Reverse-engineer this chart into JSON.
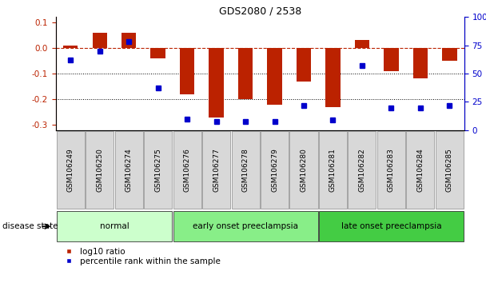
{
  "title": "GDS2080 / 2538",
  "samples": [
    "GSM106249",
    "GSM106250",
    "GSM106274",
    "GSM106275",
    "GSM106276",
    "GSM106277",
    "GSM106278",
    "GSM106279",
    "GSM106280",
    "GSM106281",
    "GSM106282",
    "GSM106283",
    "GSM106284",
    "GSM106285"
  ],
  "log10_ratio": [
    0.01,
    0.06,
    0.06,
    -0.04,
    -0.18,
    -0.27,
    -0.2,
    -0.22,
    -0.13,
    -0.23,
    0.03,
    -0.09,
    -0.12,
    -0.05
  ],
  "percentile_rank": [
    62,
    70,
    78,
    37,
    10,
    8,
    8,
    8,
    22,
    9,
    57,
    20,
    20,
    22
  ],
  "bar_color": "#bb2200",
  "dot_color": "#0000cc",
  "group_labels": [
    "normal",
    "early onset preeclampsia",
    "late onset preeclampsia"
  ],
  "group_starts": [
    0,
    4,
    9
  ],
  "group_ends": [
    3,
    8,
    13
  ],
  "group_colors": [
    "#ccffcc",
    "#88ee88",
    "#44cc44"
  ],
  "ylim_left": [
    -0.32,
    0.12
  ],
  "ylim_right": [
    0,
    100
  ],
  "left_yticks": [
    -0.3,
    -0.2,
    -0.1,
    0.0,
    0.1
  ],
  "right_yticks": [
    0,
    25,
    50,
    75,
    100
  ],
  "dotted_lines": [
    -0.1,
    -0.2
  ],
  "legend_labels": [
    "log10 ratio",
    "percentile rank within the sample"
  ]
}
